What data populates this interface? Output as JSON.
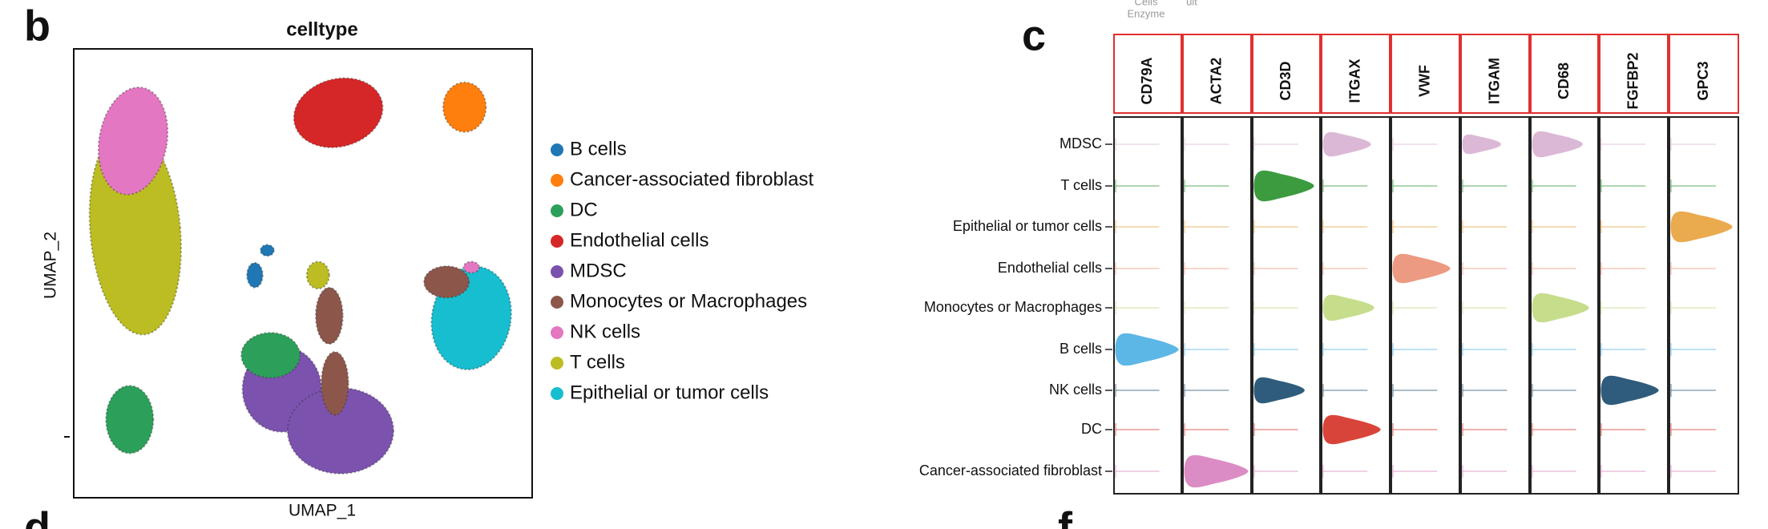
{
  "top_texts": [
    "Cells",
    "Enzyme",
    "ult"
  ],
  "panel_b": {
    "letter": "b",
    "title": "celltype",
    "y_label": "UMAP_2",
    "x_label": "UMAP_1",
    "legend": [
      {
        "label": "B cells",
        "color": "#1f77b4"
      },
      {
        "label": "Cancer-associated fibroblast",
        "color": "#ff7f0e"
      },
      {
        "label": "DC",
        "color": "#2ca05a"
      },
      {
        "label": "Endothelial cells",
        "color": "#d62728"
      },
      {
        "label": "MDSC",
        "color": "#7b52ae"
      },
      {
        "label": "Monocytes or Macrophages",
        "color": "#8c564b"
      },
      {
        "label": "NK cells",
        "color": "#e377c2"
      },
      {
        "label": "T cells",
        "color": "#bcbd22"
      },
      {
        "label": "Epithelial or tumor cells",
        "color": "#17becf"
      }
    ]
  },
  "panel_c": {
    "letter": "c",
    "genes": [
      "CD79A",
      "ACTA2",
      "CD3D",
      "ITGAX",
      "VWF",
      "ITGAM",
      "CD68",
      "FGFBP2",
      "GPC3"
    ],
    "rows": [
      {
        "label": "MDSC",
        "color": "#dbb9d6"
      },
      {
        "label": "T cells",
        "color": "#3c9b3f"
      },
      {
        "label": "Epithelial or tumor cells",
        "color": "#eaaa4e"
      },
      {
        "label": "Endothelial cells",
        "color": "#ec9a82"
      },
      {
        "label": "Monocytes or Macrophages",
        "color": "#c6dd8c"
      },
      {
        "label": "B cells",
        "color": "#5db7e6"
      },
      {
        "label": "NK cells",
        "color": "#2f5c7c"
      },
      {
        "label": "DC",
        "color": "#d9443a"
      },
      {
        "label": "Cancer-associated fibroblast",
        "color": "#dc8cc4"
      }
    ]
  },
  "bottom_letters": [
    "d",
    "f"
  ]
}
